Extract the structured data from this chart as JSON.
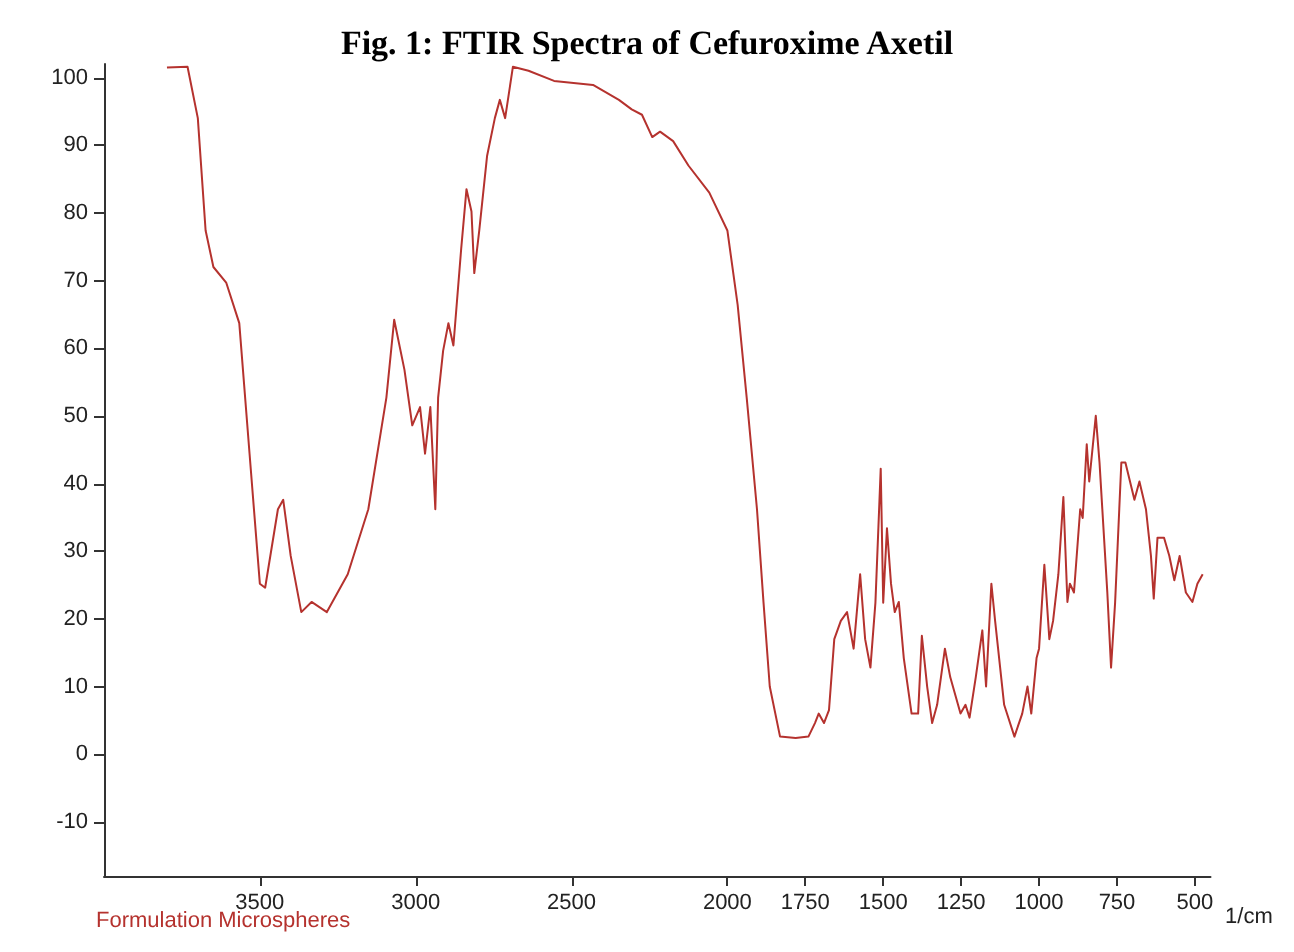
{
  "chart_data": {
    "type": "line",
    "title": "Fig. 1: FTIR Spectra of Cefuroxime Axetil",
    "xlabel": "1/cm",
    "annotations": [
      "Formulation Microspheres"
    ],
    "xlim": [
      4000,
      450
    ],
    "xticks": [
      3500,
      3000,
      2500,
      2000,
      1750,
      1500,
      1250,
      1000,
      750,
      500
    ],
    "ylim": [
      -18,
      102
    ],
    "yticks": [
      -10,
      0,
      10,
      20,
      30,
      40,
      50,
      60,
      70,
      80,
      90,
      100
    ],
    "grid": false,
    "marker": "none",
    "line_style": "solid",
    "series": [
      {
        "color": "#b5322e",
        "x": [
          3798,
          3732,
          3699,
          3674,
          3649,
          3608,
          3566,
          3533,
          3500,
          3483,
          3442,
          3425,
          3401,
          3367,
          3334,
          3285,
          3218,
          3152,
          3094,
          3069,
          3036,
          3011,
          2986,
          2970,
          2953,
          2937,
          2928,
          2912,
          2895,
          2879,
          2854,
          2837,
          2821,
          2812,
          2796,
          2771,
          2746,
          2730,
          2713,
          2688,
          2638,
          2556,
          2431,
          2348,
          2307,
          2274,
          2241,
          2216,
          2174,
          2125,
          2058,
          2000,
          1967,
          1938,
          1905,
          1884,
          1864,
          1831,
          1781,
          1740,
          1719,
          1707,
          1690,
          1674,
          1657,
          1636,
          1616,
          1595,
          1574,
          1558,
          1541,
          1525,
          1508,
          1500,
          1488,
          1475,
          1463,
          1450,
          1434,
          1409,
          1388,
          1376,
          1359,
          1343,
          1327,
          1302,
          1285,
          1252,
          1236,
          1223,
          1203,
          1182,
          1170,
          1153,
          1141,
          1112,
          1079,
          1054,
          1037,
          1025,
          1008,
          1000,
          983,
          967,
          955,
          938,
          922,
          909,
          901,
          888,
          868,
          860,
          847,
          839,
          818,
          806,
          781,
          769,
          756,
          736,
          723,
          694,
          678,
          657,
          641,
          632,
          620,
          599,
          582,
          566,
          549,
          529,
          508,
          492,
          475
        ],
        "values": [
          101.5,
          101.6,
          94,
          77.4,
          72,
          69.7,
          63.7,
          44.4,
          25.2,
          24.6,
          36.2,
          37.6,
          29.3,
          21,
          22.5,
          21,
          26.6,
          36.2,
          52.7,
          64.2,
          56.8,
          48.6,
          51.3,
          44.4,
          51.3,
          36.2,
          52.7,
          59.6,
          63.7,
          60.4,
          74.7,
          83.5,
          80.2,
          71.1,
          77.4,
          88.4,
          94,
          96.7,
          94,
          101.6,
          101,
          99.5,
          98.9,
          96.7,
          95.3,
          94.5,
          91.2,
          92,
          90.6,
          87,
          83,
          77.4,
          66.4,
          52.7,
          36.2,
          22.4,
          10,
          2.6,
          2.4,
          2.6,
          4.6,
          6,
          4.6,
          6.5,
          17,
          19.7,
          21,
          15.6,
          26.6,
          17,
          12.8,
          22.4,
          42.2,
          22.4,
          33.4,
          25.2,
          21,
          22.5,
          14.2,
          6,
          6,
          17.5,
          10,
          4.6,
          7.3,
          15.6,
          11.4,
          6,
          7.3,
          5.4,
          11.4,
          18.3,
          10,
          25.2,
          19.7,
          7.3,
          2.6,
          6,
          10,
          6,
          14.2,
          15.6,
          28,
          17,
          19.7,
          26.6,
          38,
          22.5,
          25.2,
          23.9,
          36.2,
          34.9,
          45.8,
          40.3,
          50,
          43.1,
          23.9,
          12.8,
          22.4,
          43.1,
          43.1,
          37.6,
          40.3,
          36.2,
          29.3,
          23,
          32,
          32,
          29.3,
          25.7,
          29.3,
          23.9,
          22.5,
          25.2,
          26.6
        ]
      }
    ]
  }
}
